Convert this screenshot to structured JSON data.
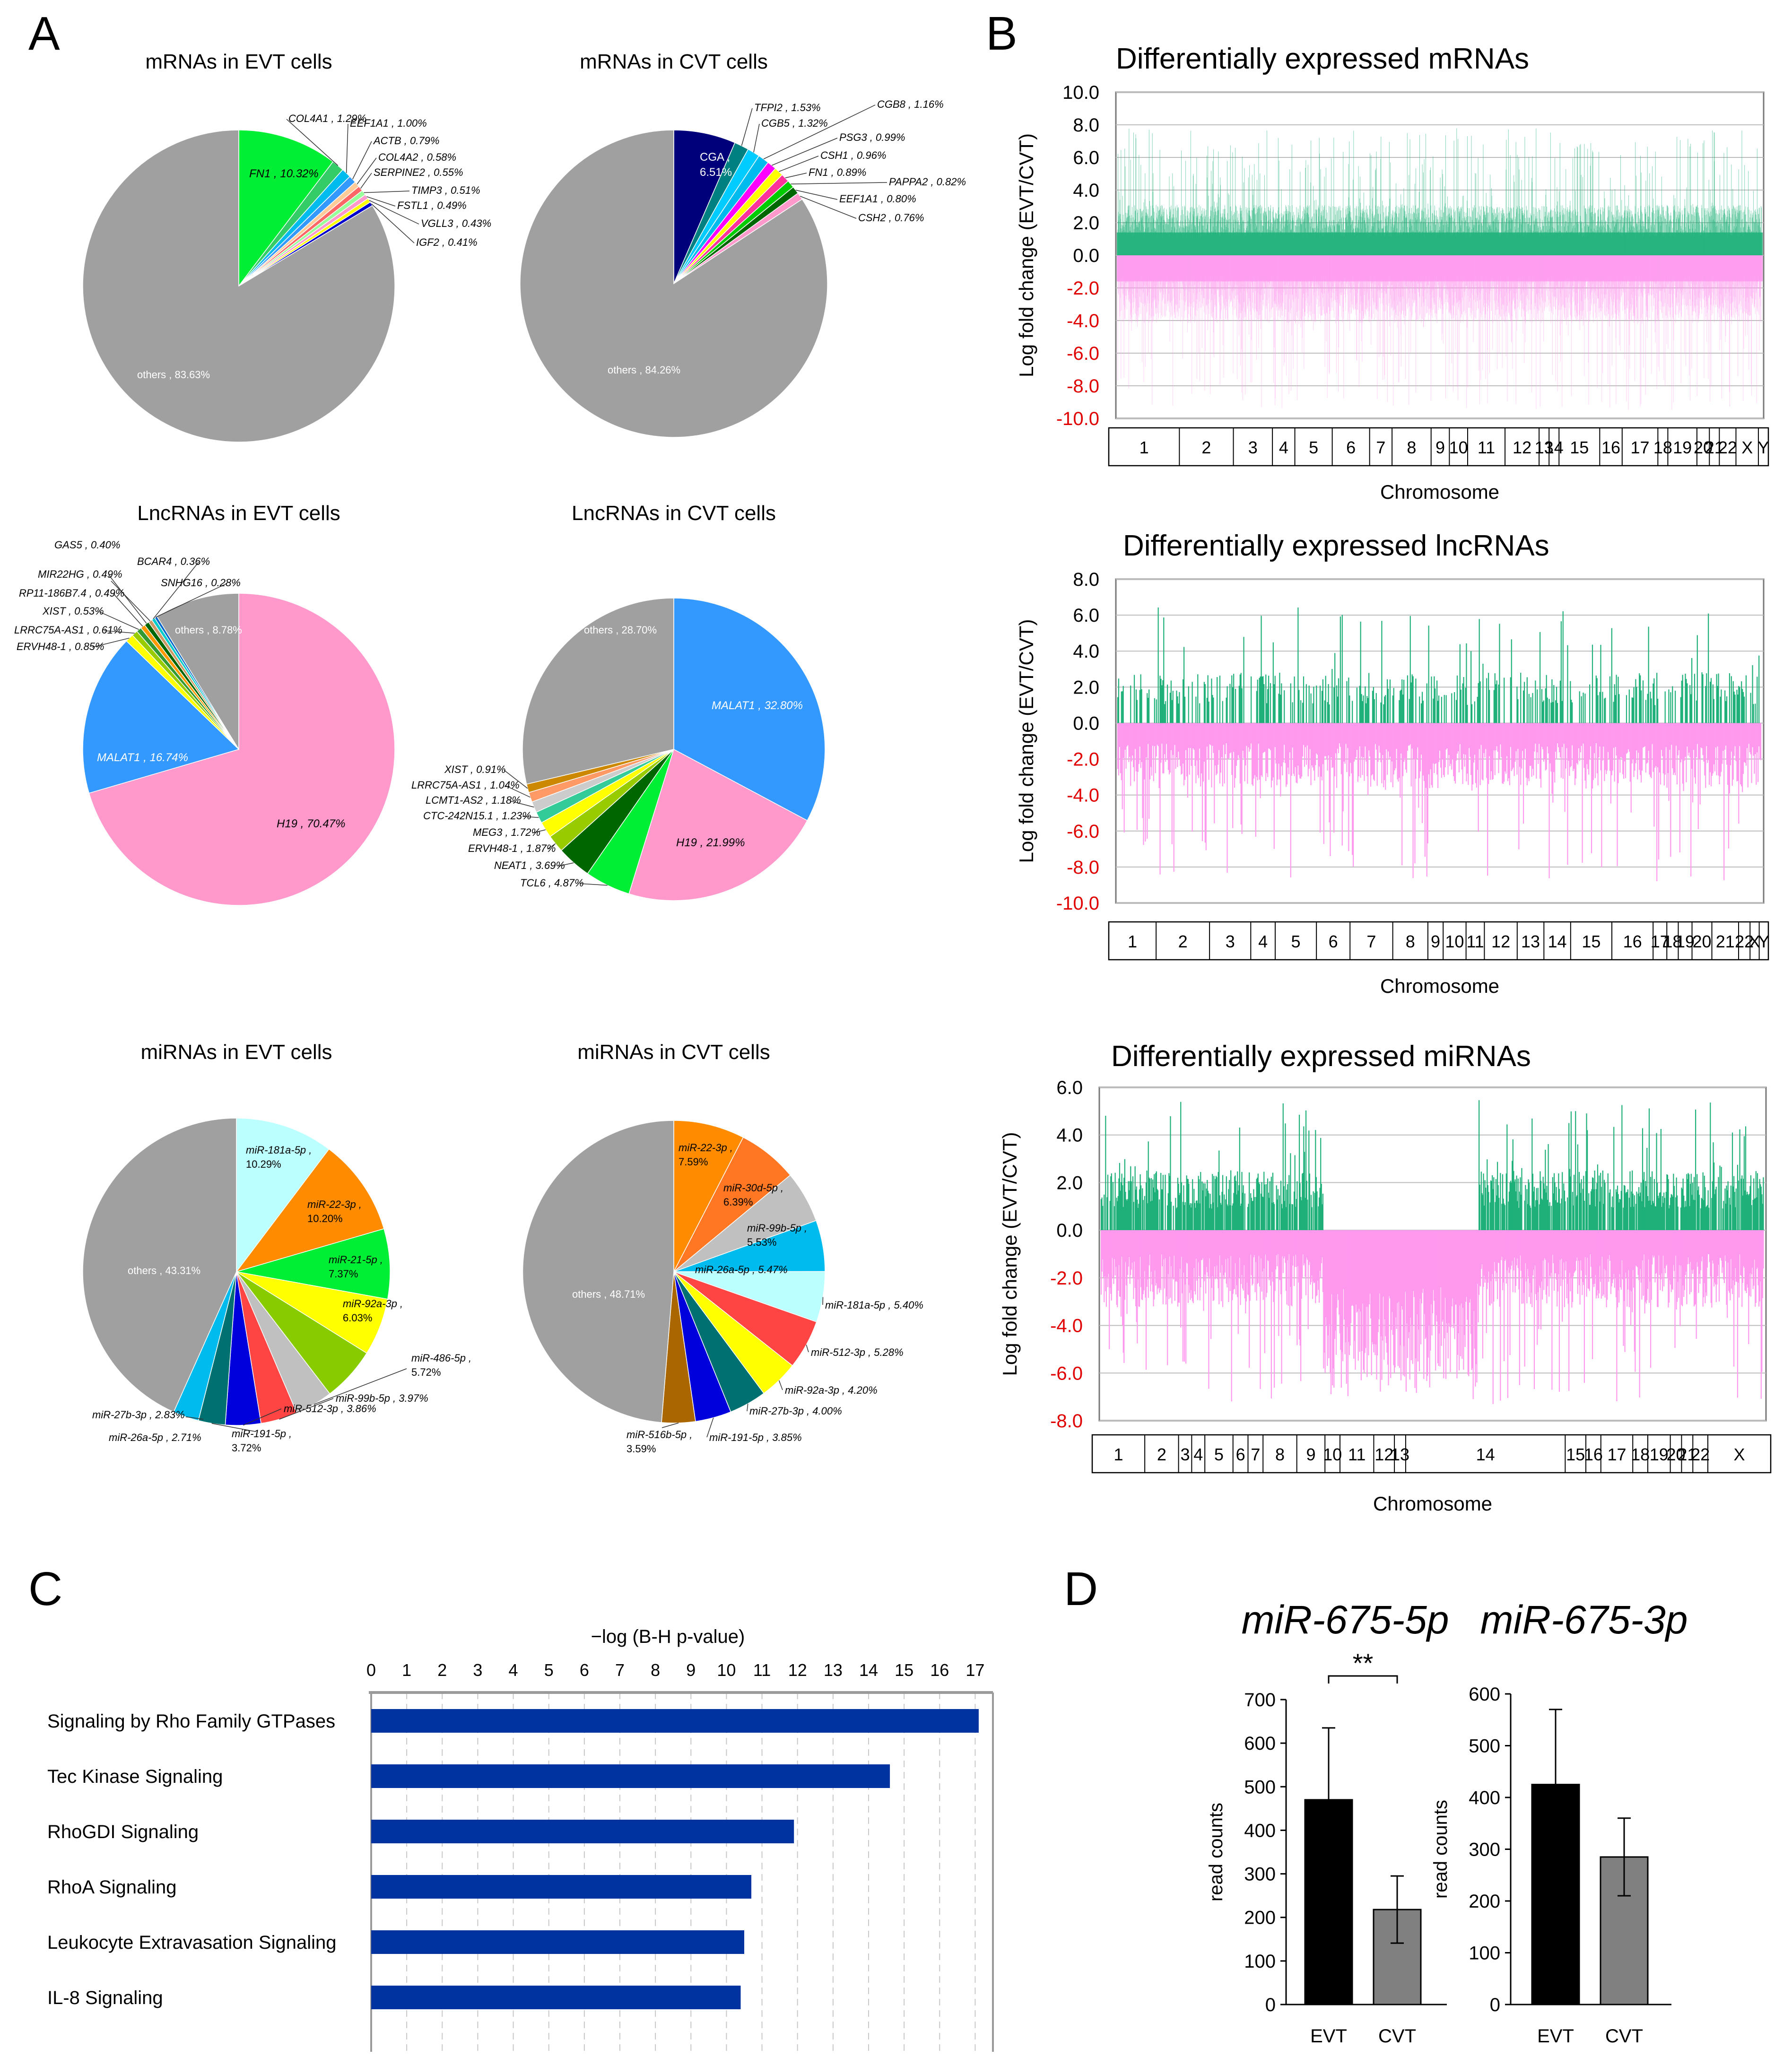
{
  "panel_letters": [
    "A",
    "B",
    "C",
    "D"
  ],
  "colors": {
    "grey": "#a0a0a0",
    "green": "#00ee33",
    "darkgreen": "#1fb079",
    "pink": "#ff99cc",
    "navy": "#00007b",
    "blue": "#3399ff",
    "orange": "#ff8c00",
    "lightcyan": "#bbffff",
    "barblue": "#0033a0",
    "barblack": "#000000",
    "bargrey": "#808080",
    "volcano_up": "#1fb079",
    "volcano_down": "#ff99ee",
    "neg_tick": "#e00000"
  },
  "chart_data": [
    {
      "type": "pie",
      "id": "mrna_evt",
      "title": "mRNAs in EVT cells",
      "slices": [
        {
          "label": "FN1",
          "value": 10.32,
          "color": "#00ee33"
        },
        {
          "label": "COL4A1",
          "value": 1.29,
          "color": "#33cc66"
        },
        {
          "label": "EEF1A1",
          "value": 1.0,
          "color": "#00bbee"
        },
        {
          "label": "ACTB",
          "value": 0.79,
          "color": "#3399ff"
        },
        {
          "label": "COL4A2",
          "value": 0.58,
          "color": "#ffcc99"
        },
        {
          "label": "SERPINE2",
          "value": 0.55,
          "color": "#ff6666"
        },
        {
          "label": "TIMP3",
          "value": 0.51,
          "color": "#99ff99"
        },
        {
          "label": "FSTL1",
          "value": 0.49,
          "color": "#ff99cc"
        },
        {
          "label": "VGLL3",
          "value": 0.43,
          "color": "#ffff00"
        },
        {
          "label": "IGF2",
          "value": 0.41,
          "color": "#0000cc"
        },
        {
          "label": "others",
          "value": 83.63,
          "color": "#a0a0a0"
        }
      ],
      "slice_labels": {
        "inside_major": "FN1 , 10.32%",
        "others": "others , 83.63%",
        "callouts": [
          "COL4A1 , 1.29%",
          "EEF1A1 , 1.00%",
          "ACTB , 0.79%",
          "COL4A2 , 0.58%",
          "SERPINE2 , 0.55%",
          "TIMP3 , 0.51%",
          "FSTL1 , 0.49%",
          "VGLL3 , 0.43%",
          "IGF2 , 0.41%"
        ]
      }
    },
    {
      "type": "pie",
      "id": "mrna_cvt",
      "title": "mRNAs in CVT cells",
      "slices": [
        {
          "label": "CGA",
          "value": 6.51,
          "color": "#00007b"
        },
        {
          "label": "TFPI2",
          "value": 1.53,
          "color": "#008080"
        },
        {
          "label": "CGB5",
          "value": 1.32,
          "color": "#00ccff"
        },
        {
          "label": "CGB8",
          "value": 1.16,
          "color": "#00bbee"
        },
        {
          "label": "PSG3",
          "value": 0.99,
          "color": "#ff00ff"
        },
        {
          "label": "CSH1",
          "value": 0.96,
          "color": "#ffff00"
        },
        {
          "label": "FN1",
          "value": 0.89,
          "color": "#ff3399"
        },
        {
          "label": "PAPPA2",
          "value": 0.82,
          "color": "#00cc00"
        },
        {
          "label": "EEF1A1",
          "value": 0.8,
          "color": "#006600"
        },
        {
          "label": "CSH2",
          "value": 0.76,
          "color": "#ff99cc"
        },
        {
          "label": "others",
          "value": 84.26,
          "color": "#a0a0a0"
        }
      ],
      "slice_labels": {
        "inside_major": "CGA ,",
        "inside_major_2": "6.51%",
        "others": "others , 84.26%",
        "callouts": [
          "TFPI2 , 1.53%",
          "CGB5 , 1.32%",
          "CGB8 , 1.16%",
          "PSG3 , 0.99%",
          "CSH1 , 0.96%",
          "FN1 , 0.89%",
          "PAPPA2 , 0.82%",
          "EEF1A1 , 0.80%",
          "CSH2 , 0.76%"
        ]
      }
    },
    {
      "type": "pie",
      "id": "lnc_evt",
      "title": "LncRNAs in EVT cells",
      "slices": [
        {
          "label": "H19",
          "value": 70.47,
          "color": "#ff99cc"
        },
        {
          "label": "MALAT1",
          "value": 16.74,
          "color": "#3399ff"
        },
        {
          "label": "ERVH48-1",
          "value": 0.85,
          "color": "#ffff00"
        },
        {
          "label": "LRRC75A-AS1",
          "value": 0.61,
          "color": "#99cc00"
        },
        {
          "label": "XIST",
          "value": 0.53,
          "color": "#339933"
        },
        {
          "label": "RP11-186B7.4",
          "value": 0.49,
          "color": "#ff9900"
        },
        {
          "label": "MIR22HG",
          "value": 0.49,
          "color": "#006600"
        },
        {
          "label": "GAS5",
          "value": 0.4,
          "color": "#cc9966"
        },
        {
          "label": "BCAR4",
          "value": 0.36,
          "color": "#00cccc"
        },
        {
          "label": "SNHG16",
          "value": 0.28,
          "color": "#0066cc"
        },
        {
          "label": "others",
          "value": 8.78,
          "color": "#a0a0a0"
        }
      ],
      "slice_labels": {
        "major1": "H19 , 70.47%",
        "major2": "MALAT1 , 16.74%",
        "others": "others , 8.78%",
        "callouts": [
          "GAS5 , 0.40%",
          "BCAR4 , 0.36%",
          "MIR22HG , 0.49%",
          "SNHG16 , 0.28%",
          "RP11-186B7.4 , 0.49%",
          "XIST , 0.53%",
          "LRRC75A-AS1 , 0.61%",
          "ERVH48-1 , 0.85%"
        ]
      }
    },
    {
      "type": "pie",
      "id": "lnc_cvt",
      "title": "LncRNAs in CVT cells",
      "slices": [
        {
          "label": "MALAT1",
          "value": 32.8,
          "color": "#3399ff"
        },
        {
          "label": "H19",
          "value": 21.99,
          "color": "#ff99cc"
        },
        {
          "label": "TCL6",
          "value": 4.87,
          "color": "#00ee33"
        },
        {
          "label": "NEAT1",
          "value": 3.69,
          "color": "#006600"
        },
        {
          "label": "ERVH48-1",
          "value": 1.87,
          "color": "#99cc00"
        },
        {
          "label": "MEG3",
          "value": 1.72,
          "color": "#ffff00"
        },
        {
          "label": "CTC-242N15.1",
          "value": 1.23,
          "color": "#33cc99"
        },
        {
          "label": "LCMT1-AS2",
          "value": 1.18,
          "color": "#cccccc"
        },
        {
          "label": "LRRC75A-AS1",
          "value": 1.04,
          "color": "#ff9966"
        },
        {
          "label": "XIST",
          "value": 0.91,
          "color": "#cc8800"
        },
        {
          "label": "others",
          "value": 28.7,
          "color": "#a0a0a0"
        }
      ],
      "slice_labels": {
        "major1": "MALAT1 , 32.80%",
        "major2": "H19 , 21.99%",
        "others": "others , 28.70%",
        "callouts": [
          "XIST , 0.91%",
          "LRRC75A-AS1 , 1.04%",
          "LCMT1-AS2 , 1.18%",
          "CTC-242N15.1 , 1.23%",
          "MEG3 , 1.72%",
          "ERVH48-1 , 1.87%",
          "NEAT1 , 3.69%",
          "TCL6 , 4.87%"
        ]
      }
    },
    {
      "type": "pie",
      "id": "mirna_evt",
      "title": "miRNAs in EVT cells",
      "slices": [
        {
          "label": "miR-181a-5p",
          "value": 10.29,
          "color": "#bbffff"
        },
        {
          "label": "miR-22-3p",
          "value": 10.2,
          "color": "#ff8c00"
        },
        {
          "label": "miR-21-5p",
          "value": 7.37,
          "color": "#00ee33"
        },
        {
          "label": "miR-92a-3p",
          "value": 6.03,
          "color": "#ffff00"
        },
        {
          "label": "miR-486-5p",
          "value": 5.72,
          "color": "#88cc00"
        },
        {
          "label": "miR-99b-5p",
          "value": 3.97,
          "color": "#c0c0c0"
        },
        {
          "label": "miR-512-3p",
          "value": 3.86,
          "color": "#ff4444"
        },
        {
          "label": "miR-191-5p",
          "value": 3.72,
          "color": "#0000dd"
        },
        {
          "label": "miR-27b-3p",
          "value": 2.83,
          "color": "#007070"
        },
        {
          "label": "miR-26a-5p",
          "value": 2.71,
          "color": "#00bbee"
        },
        {
          "label": "others",
          "value": 43.31,
          "color": "#a0a0a0"
        }
      ],
      "slice_labels": {
        "others": "others , 43.31%",
        "inside": [
          [
            "miR-181a-5p ,",
            "10.29%"
          ],
          [
            "miR-22-3p ,",
            "10.20%"
          ],
          [
            "miR-21-5p ,",
            "7.37%"
          ],
          [
            "miR-92a-3p ,",
            "6.03%"
          ]
        ],
        "callouts": [
          "miR-486-5p ,",
          "5.72%",
          "miR-99b-5p , 3.97%",
          "miR-512-3p , 3.86%",
          "miR-191-5p ,",
          "3.72%",
          "miR-27b-3p , 2.83%",
          "miR-26a-5p , 2.71%"
        ]
      }
    },
    {
      "type": "pie",
      "id": "mirna_cvt",
      "title": "miRNAs in CVT cells",
      "slices": [
        {
          "label": "miR-22-3p",
          "value": 7.59,
          "color": "#ff8c00"
        },
        {
          "label": "miR-30d-5p",
          "value": 6.39,
          "color": "#ff7722"
        },
        {
          "label": "miR-99b-5p",
          "value": 5.53,
          "color": "#c0c0c0"
        },
        {
          "label": "miR-26a-5p",
          "value": 5.47,
          "color": "#00bbee"
        },
        {
          "label": "miR-181a-5p",
          "value": 5.4,
          "color": "#bbffff"
        },
        {
          "label": "miR-512-3p",
          "value": 5.28,
          "color": "#ff4444"
        },
        {
          "label": "miR-92a-3p",
          "value": 4.2,
          "color": "#ffff00"
        },
        {
          "label": "miR-27b-3p",
          "value": 4.0,
          "color": "#007070"
        },
        {
          "label": "miR-191-5p",
          "value": 3.85,
          "color": "#0000dd"
        },
        {
          "label": "miR-516b-5p",
          "value": 3.59,
          "color": "#aa6600"
        },
        {
          "label": "others",
          "value": 48.71,
          "color": "#a0a0a0"
        }
      ],
      "slice_labels": {
        "others": "others , 48.71%",
        "inside": [
          [
            "miR-22-3p ,",
            "7.59%"
          ],
          [
            "miR-30d-5p ,",
            "6.39%"
          ],
          [
            "miR-99b-5p ,",
            "5.53%"
          ],
          [
            "miR-26a-5p , 5.47%"
          ]
        ],
        "callouts": [
          "miR-181a-5p , 5.40%",
          "miR-512-3p , 5.28%",
          "miR-92a-3p , 4.20%",
          "miR-27b-3p , 4.00%",
          "miR-191-5p , 3.85%",
          "miR-516b-5p ,",
          "3.59%"
        ]
      }
    },
    {
      "type": "bar",
      "id": "volcano_mrna",
      "title": "Differentially expressed mRNAs",
      "ylabel": "Log fold change (EVT/CVT)",
      "xlabel": "Chromosome",
      "ylim": [
        -10,
        10
      ],
      "ytick_labels": [
        "10.0",
        "8.0",
        "6.0",
        "4.0",
        "2.0",
        "0.0",
        "-2.0",
        "-4.0",
        "-6.0",
        "-8.0",
        "-10.0"
      ],
      "chromosomes": [
        "1",
        "2",
        "3",
        "4",
        "5",
        "6",
        "7",
        "8",
        "9",
        "10",
        "11",
        "12",
        "13",
        "14",
        "15",
        "16",
        "17",
        "18",
        "19",
        "20",
        "21",
        "22",
        "X",
        "Y"
      ],
      "chrom_sizes": [
        8.5,
        6.5,
        4.7,
        2.7,
        4.5,
        4.5,
        2.7,
        4.7,
        2.2,
        2.2,
        4.5,
        4.1,
        1.2,
        1.2,
        4.9,
        2.7,
        4.3,
        1.2,
        3.5,
        1.5,
        1.2,
        2.0,
        2.7,
        1.2
      ],
      "up_typical": 2.2,
      "up_max": 7.8,
      "down_typical": -3.2,
      "down_max": -9.5
    },
    {
      "type": "bar",
      "id": "volcano_lnc",
      "title": "Differentially expressed lncRNAs",
      "ylabel": "Log fold change (EVT/CVT)",
      "xlabel": "Chromosome",
      "ylim": [
        -10,
        8
      ],
      "ytick_labels": [
        "8.0",
        "6.0",
        "4.0",
        "2.0",
        "0.0",
        "-2.0",
        "-4.0",
        "-6.0",
        "-8.0",
        "-10.0"
      ],
      "chromosomes": [
        "1",
        "2",
        "3",
        "4",
        "5",
        "6",
        "7",
        "8",
        "9",
        "10",
        "11",
        "12",
        "13",
        "14",
        "15",
        "16",
        "17",
        "18",
        "19",
        "20",
        "21",
        "22",
        "X",
        "Y"
      ],
      "chrom_sizes": [
        6.2,
        7.0,
        5.4,
        3.2,
        5.4,
        4.4,
        5.6,
        4.6,
        2.0,
        3.0,
        2.4,
        4.3,
        3.5,
        3.5,
        5.4,
        5.4,
        1.8,
        1.5,
        1.8,
        2.6,
        3.5,
        1.5,
        1.2,
        1.2
      ],
      "up_typical": 2.0,
      "up_max": 6.5,
      "down_typical": -2.8,
      "down_max": -8.8
    },
    {
      "type": "bar",
      "id": "volcano_mirna",
      "title": "Differentially expressed miRNAs",
      "ylabel": "Log fold change (EVT/CVT)",
      "xlabel": "Chromosome",
      "ylim": [
        -8,
        6
      ],
      "ytick_labels": [
        "6.0",
        "4.0",
        "2.0",
        "0.0",
        "-2.0",
        "-4.0",
        "-6.0",
        "-8.0"
      ],
      "chromosomes": [
        "1",
        "2",
        "3",
        "4",
        "5",
        "6",
        "7",
        "8",
        "9",
        "10",
        "11",
        "12",
        "13",
        "14",
        "15",
        "16",
        "17",
        "18",
        "19",
        "20",
        "21",
        "22",
        "X"
      ],
      "chrom_sizes": [
        5.6,
        3.6,
        1.4,
        1.4,
        3.0,
        1.6,
        1.6,
        3.6,
        3.0,
        1.6,
        3.6,
        2.2,
        1.2,
        17.0,
        2.2,
        1.6,
        3.4,
        1.6,
        2.4,
        1.2,
        1.2,
        1.6,
        6.7
      ],
      "up_typical": 1.8,
      "up_max": 5.5,
      "down_typical": -2.5,
      "down_max": -7.3
    },
    {
      "type": "bar",
      "orientation": "horizontal",
      "id": "pathway",
      "title": "−log (B-H p-value)",
      "xlim": [
        0,
        17.5
      ],
      "xticks": [
        0,
        1,
        2,
        3,
        4,
        5,
        6,
        7,
        8,
        9,
        10,
        11,
        12,
        13,
        14,
        15,
        16,
        17
      ],
      "categories": [
        "Signaling by Rho Family GTPases",
        "Tec Kinase Signaling",
        "RhoGDI Signaling",
        "RhoA Signaling",
        "Leukocyte Extravasation Signaling",
        "IL-8 Signaling"
      ],
      "values": [
        17.1,
        14.6,
        11.9,
        10.7,
        10.5,
        10.4
      ]
    },
    {
      "type": "bar",
      "id": "mir675_5p",
      "title": "miR-675-5p",
      "ylabel": "read counts",
      "ylim": [
        0,
        700
      ],
      "yticks": [
        0,
        100,
        200,
        300,
        400,
        500,
        600,
        700
      ],
      "categories": [
        "EVT",
        "CVT"
      ],
      "values": [
        470,
        218
      ],
      "errors": [
        165,
        77
      ],
      "significance": "**"
    },
    {
      "type": "bar",
      "id": "mir675_3p",
      "title": "miR-675-3p",
      "ylabel": "read counts",
      "ylim": [
        0,
        600
      ],
      "yticks": [
        0,
        100,
        200,
        300,
        400,
        500,
        600
      ],
      "categories": [
        "EVT",
        "CVT"
      ],
      "values": [
        425,
        285
      ],
      "errors": [
        145,
        75
      ]
    }
  ]
}
